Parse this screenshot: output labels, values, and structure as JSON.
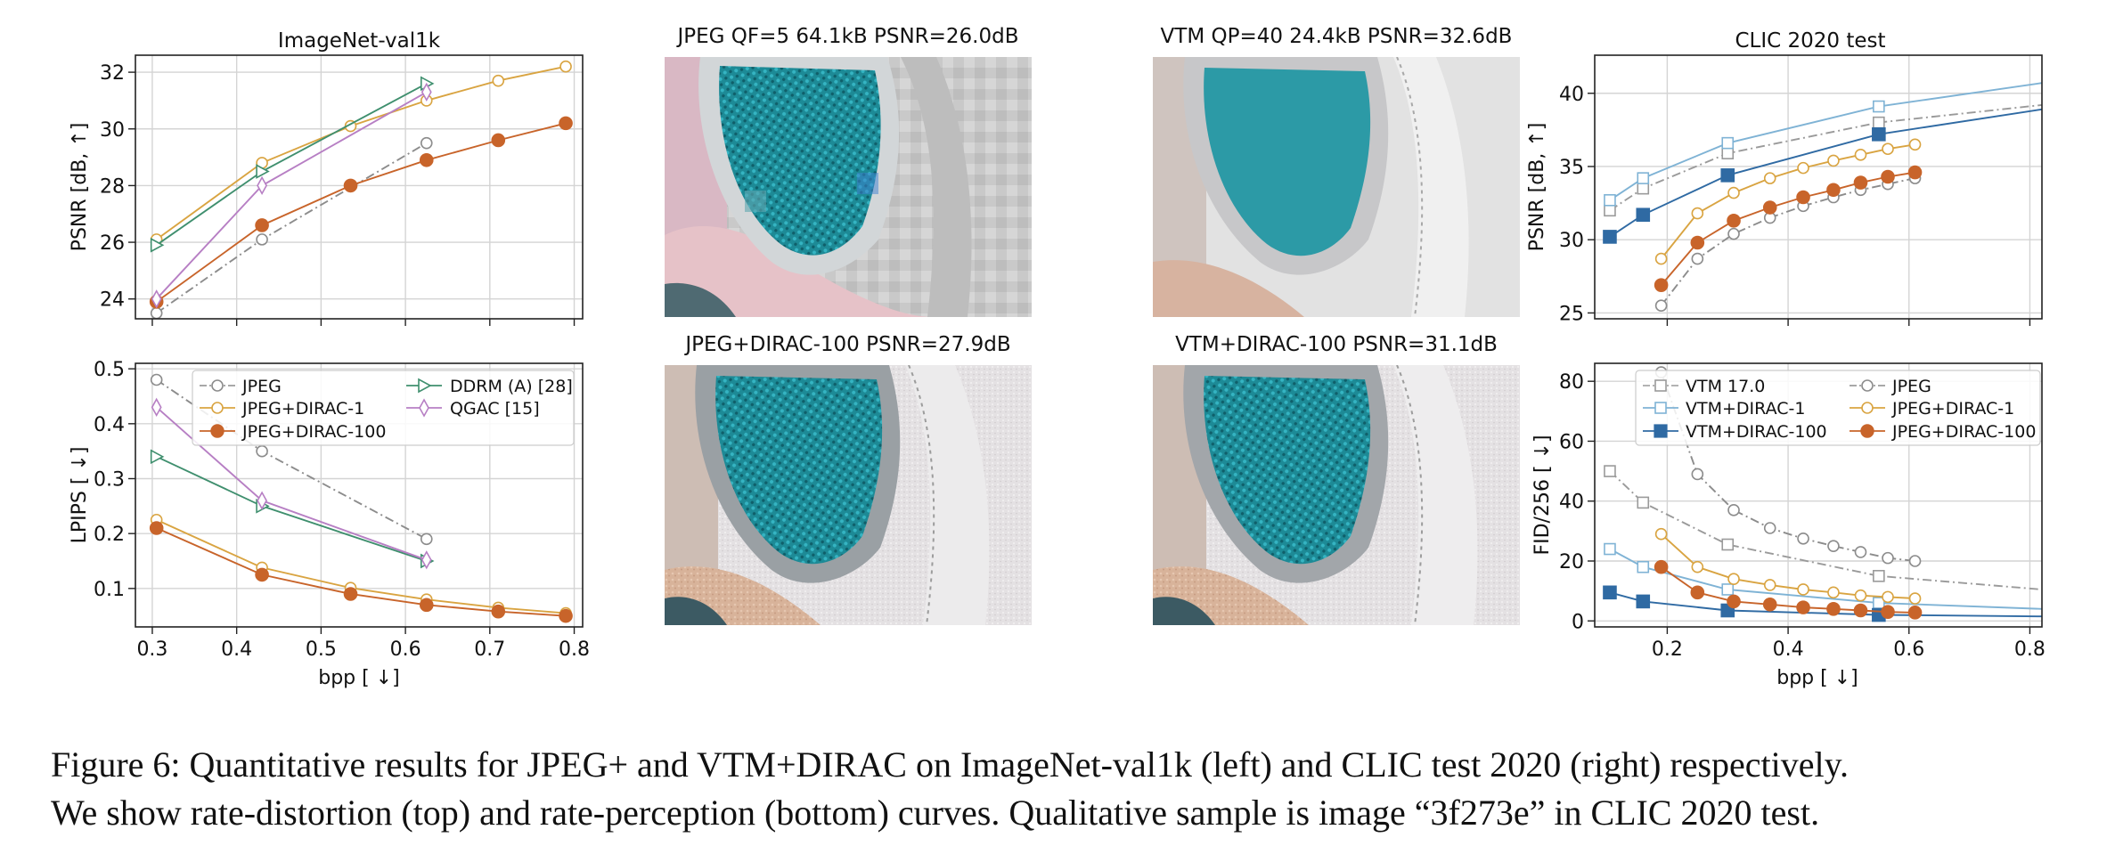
{
  "panels": {
    "tl": {
      "title": "ImageNet-val1k",
      "ylabel": "PSNR [dB, ↑]",
      "xlabel": ""
    },
    "bl": {
      "title": "",
      "ylabel": "LPIPS [ ↓]",
      "xlabel": "bpp [ ↓]"
    },
    "tr": {
      "title": "CLIC 2020 test",
      "ylabel": "PSNR [dB, ↑]",
      "xlabel": ""
    },
    "br": {
      "title": "",
      "ylabel": "FID/256 [ ↓]",
      "xlabel": "bpp [ ↓]"
    }
  },
  "photos": {
    "p1": {
      "title": "JPEG QF=5 64.1kB PSNR=26.0dB"
    },
    "p2": {
      "title": "VTM QP=40 24.4kB PSNR=32.6dB"
    },
    "p3": {
      "title": "JPEG+DIRAC-100 PSNR=27.9dB"
    },
    "p4": {
      "title": "VTM+DIRAC-100 PSNR=31.1dB"
    }
  },
  "legends": {
    "left": [
      "JPEG",
      "JPEG+DIRAC-1",
      "JPEG+DIRAC-100",
      "DDRM (A) [28]",
      "QGAC [15]"
    ],
    "right": [
      "VTM 17.0",
      "VTM+DIRAC-1",
      "VTM+DIRAC-100",
      "JPEG",
      "JPEG+DIRAC-1",
      "JPEG+DIRAC-100"
    ]
  },
  "colors": {
    "jpeg": "#8c8c8c",
    "dirac1": "#d9a441",
    "dirac100": "#c8642a",
    "ddrm": "#3f8f6e",
    "qgac": "#b77fc4",
    "vtm": "#9a9a9a",
    "vtm_dirac1": "#7fb3d5",
    "vtm_dirac100": "#2f6aa3"
  },
  "chart_data": [
    {
      "id": "tl",
      "type": "line",
      "title": "ImageNet-val1k",
      "xlabel": "",
      "ylabel": "PSNR [dB, ↑]",
      "xlim": [
        0.28,
        0.81
      ],
      "ylim": [
        23.3,
        32.6
      ],
      "xticks": [
        0.3,
        0.4,
        0.5,
        0.6,
        0.7,
        0.8
      ],
      "yticks": [
        24,
        26,
        28,
        30,
        32
      ],
      "grid": true,
      "series": [
        {
          "name": "JPEG",
          "style": "jpeg",
          "x": [
            0.305,
            0.43,
            0.625
          ],
          "y": [
            23.5,
            26.1,
            29.5
          ]
        },
        {
          "name": "JPEG+DIRAC-1",
          "style": "dirac1",
          "x": [
            0.305,
            0.43,
            0.535,
            0.625,
            0.71,
            0.79
          ],
          "y": [
            26.1,
            28.8,
            30.1,
            31.0,
            31.7,
            32.2
          ]
        },
        {
          "name": "JPEG+DIRAC-100",
          "style": "dirac100",
          "x": [
            0.305,
            0.43,
            0.535,
            0.625,
            0.71,
            0.79
          ],
          "y": [
            23.9,
            26.6,
            28.0,
            28.9,
            29.6,
            30.2
          ]
        },
        {
          "name": "DDRM (A) [28]",
          "style": "ddrm",
          "x": [
            0.305,
            0.43,
            0.625
          ],
          "y": [
            25.9,
            28.5,
            31.6
          ]
        },
        {
          "name": "QGAC [15]",
          "style": "qgac",
          "x": [
            0.305,
            0.43,
            0.625
          ],
          "y": [
            24.0,
            28.0,
            31.3
          ]
        }
      ]
    },
    {
      "id": "bl",
      "type": "line",
      "title": "",
      "xlabel": "bpp [ ↓]",
      "ylabel": "LPIPS [ ↓]",
      "xlim": [
        0.28,
        0.81
      ],
      "ylim": [
        0.03,
        0.51
      ],
      "xticks": [
        0.3,
        0.4,
        0.5,
        0.6,
        0.7,
        0.8
      ],
      "yticks": [
        0.1,
        0.2,
        0.3,
        0.4,
        0.5
      ],
      "grid": true,
      "legend": "top-center",
      "series": [
        {
          "name": "JPEG",
          "style": "jpeg",
          "x": [
            0.305,
            0.43,
            0.625
          ],
          "y": [
            0.48,
            0.35,
            0.19
          ]
        },
        {
          "name": "JPEG+DIRAC-1",
          "style": "dirac1",
          "x": [
            0.305,
            0.43,
            0.535,
            0.625,
            0.71,
            0.79
          ],
          "y": [
            0.225,
            0.138,
            0.101,
            0.08,
            0.065,
            0.055
          ]
        },
        {
          "name": "JPEG+DIRAC-100",
          "style": "dirac100",
          "x": [
            0.305,
            0.43,
            0.535,
            0.625,
            0.71,
            0.79
          ],
          "y": [
            0.21,
            0.125,
            0.09,
            0.07,
            0.058,
            0.05
          ]
        },
        {
          "name": "DDRM (A) [28]",
          "style": "ddrm",
          "x": [
            0.305,
            0.43,
            0.625
          ],
          "y": [
            0.34,
            0.25,
            0.15
          ]
        },
        {
          "name": "QGAC [15]",
          "style": "qgac",
          "x": [
            0.305,
            0.43,
            0.625
          ],
          "y": [
            0.43,
            0.26,
            0.152
          ]
        }
      ]
    },
    {
      "id": "tr",
      "type": "line",
      "title": "CLIC 2020 test",
      "xlabel": "",
      "ylabel": "PSNR [dB, ↑]",
      "xlim": [
        0.08,
        0.82
      ],
      "ylim": [
        24.6,
        42.6
      ],
      "xticks": [
        0.2,
        0.4,
        0.6,
        0.8
      ],
      "yticks": [
        25,
        30,
        35,
        40
      ],
      "grid": true,
      "series": [
        {
          "name": "VTM 17.0",
          "style": "vtm",
          "x": [
            0.105,
            0.16,
            0.3,
            0.55,
            0.82
          ],
          "y": [
            32.0,
            33.5,
            35.9,
            38.0,
            39.2
          ],
          "markers": [
            0,
            1,
            2,
            3
          ]
        },
        {
          "name": "VTM+DIRAC-1",
          "style": "vtm_dirac1",
          "x": [
            0.105,
            0.16,
            0.3,
            0.55,
            0.82
          ],
          "y": [
            32.7,
            34.2,
            36.6,
            39.1,
            40.7
          ],
          "markers": [
            0,
            1,
            2,
            3
          ]
        },
        {
          "name": "VTM+DIRAC-100",
          "style": "vtm_dirac100",
          "x": [
            0.105,
            0.16,
            0.3,
            0.55,
            0.82
          ],
          "y": [
            30.2,
            31.7,
            34.4,
            37.2,
            38.9
          ],
          "markers": [
            0,
            1,
            2,
            3
          ]
        },
        {
          "name": "JPEG",
          "style": "jpeg",
          "x": [
            0.19,
            0.25,
            0.31,
            0.37,
            0.425,
            0.475,
            0.52,
            0.565,
            0.61
          ],
          "y": [
            25.5,
            28.7,
            30.4,
            31.5,
            32.3,
            32.9,
            33.4,
            33.8,
            34.2
          ]
        },
        {
          "name": "JPEG+DIRAC-1",
          "style": "dirac1",
          "x": [
            0.19,
            0.25,
            0.31,
            0.37,
            0.425,
            0.475,
            0.52,
            0.565,
            0.61
          ],
          "y": [
            28.7,
            31.8,
            33.2,
            34.2,
            34.9,
            35.4,
            35.8,
            36.2,
            36.5
          ]
        },
        {
          "name": "JPEG+DIRAC-100",
          "style": "dirac100",
          "x": [
            0.19,
            0.25,
            0.31,
            0.37,
            0.425,
            0.475,
            0.52,
            0.565,
            0.61
          ],
          "y": [
            26.9,
            29.8,
            31.3,
            32.2,
            32.9,
            33.4,
            33.9,
            34.3,
            34.6
          ]
        }
      ]
    },
    {
      "id": "br",
      "type": "line",
      "title": "",
      "xlabel": "bpp [ ↓]",
      "ylabel": "FID/256 [ ↓]",
      "xlim": [
        0.08,
        0.82
      ],
      "ylim": [
        -2,
        86
      ],
      "xticks": [
        0.2,
        0.4,
        0.6,
        0.8
      ],
      "yticks": [
        0,
        20,
        40,
        60,
        80
      ],
      "grid": true,
      "legend": "top-center",
      "series": [
        {
          "name": "VTM 17.0",
          "style": "vtm",
          "x": [
            0.105,
            0.16,
            0.3,
            0.55,
            0.82
          ],
          "y": [
            50.0,
            39.5,
            25.5,
            15.0,
            10.5
          ],
          "markers": [
            0,
            1,
            2,
            3
          ]
        },
        {
          "name": "VTM+DIRAC-1",
          "style": "vtm_dirac1",
          "x": [
            0.105,
            0.16,
            0.3,
            0.55,
            0.82
          ],
          "y": [
            24.0,
            18.0,
            10.5,
            6.0,
            4.0
          ],
          "markers": [
            0,
            1,
            2,
            3
          ]
        },
        {
          "name": "VTM+DIRAC-100",
          "style": "vtm_dirac100",
          "x": [
            0.105,
            0.16,
            0.3,
            0.55,
            0.82
          ],
          "y": [
            9.5,
            6.5,
            3.5,
            2.0,
            1.5
          ],
          "markers": [
            0,
            1,
            2,
            3
          ]
        },
        {
          "name": "JPEG",
          "style": "jpeg",
          "x": [
            0.19,
            0.25,
            0.31,
            0.37,
            0.425,
            0.475,
            0.52,
            0.565,
            0.61
          ],
          "y": [
            83.0,
            49.0,
            37.0,
            31.0,
            27.5,
            25.0,
            23.0,
            21.0,
            20.0
          ]
        },
        {
          "name": "JPEG+DIRAC-1",
          "style": "dirac1",
          "x": [
            0.19,
            0.25,
            0.31,
            0.37,
            0.425,
            0.475,
            0.52,
            0.565,
            0.61
          ],
          "y": [
            29.0,
            18.0,
            14.0,
            12.0,
            10.5,
            9.5,
            8.5,
            8.0,
            7.5
          ]
        },
        {
          "name": "JPEG+DIRAC-100",
          "style": "dirac100",
          "x": [
            0.19,
            0.25,
            0.31,
            0.37,
            0.425,
            0.475,
            0.52,
            0.565,
            0.61
          ],
          "y": [
            18.0,
            9.5,
            6.5,
            5.5,
            4.5,
            4.0,
            3.5,
            3.0,
            2.8
          ]
        }
      ]
    }
  ],
  "caption": {
    "line1": "Figure 6: Quantitative results for JPEG+ and VTM+DIRAC on ImageNet-val1k (left) and CLIC test 2020 (right) respectively.",
    "line2": "We show rate-distortion (top) and rate-perception (bottom) curves. Qualitative sample is image “3f273e” in CLIC 2020 test."
  }
}
